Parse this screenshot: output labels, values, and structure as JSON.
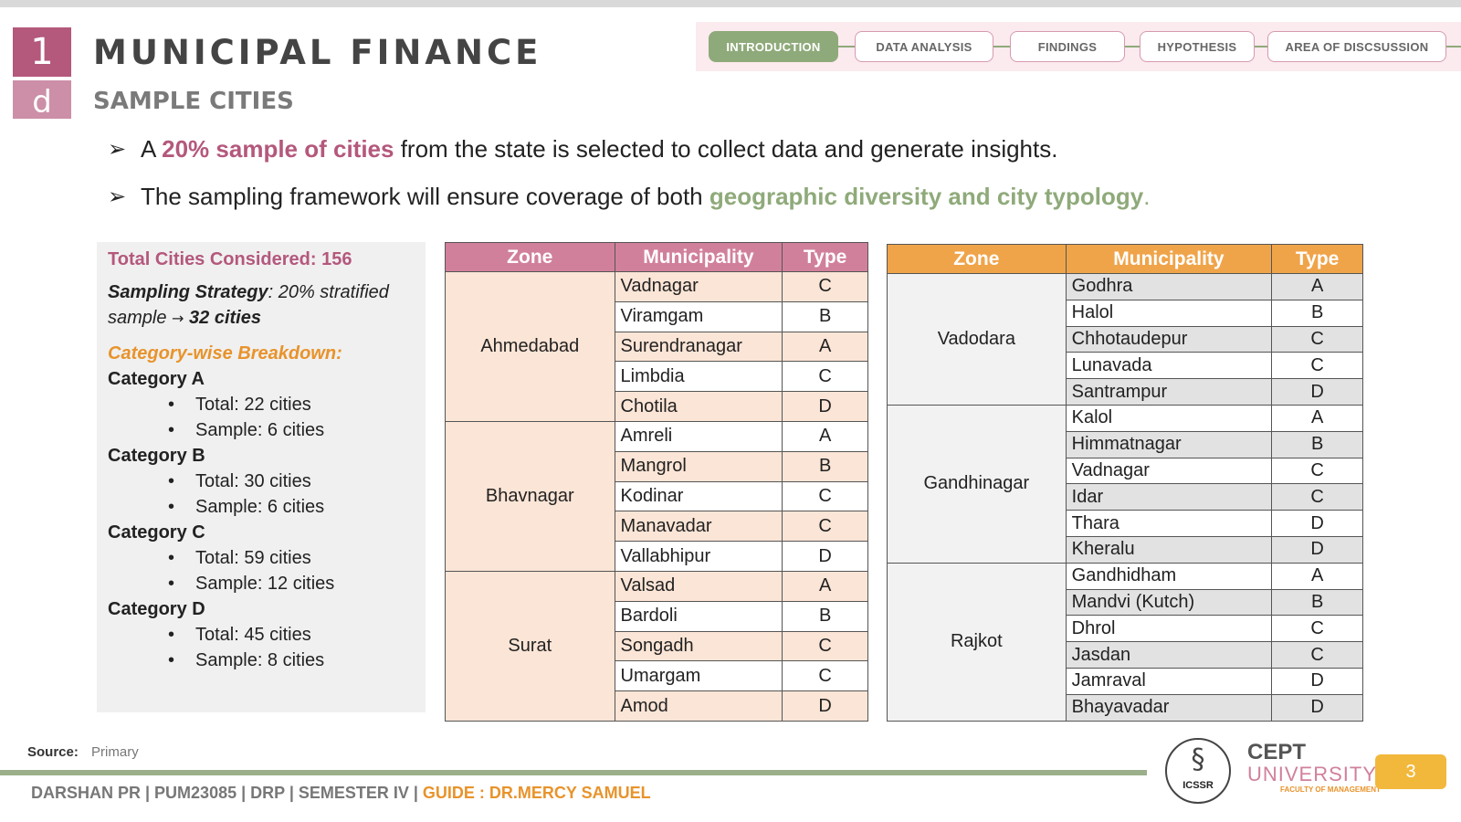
{
  "header": {
    "badge_top": "1",
    "badge_bottom": "d",
    "title": "MUNICIPAL FINANCE",
    "subtitle": "SAMPLE CITIES"
  },
  "nav": {
    "items": [
      "INTRODUCTION",
      "DATA ANALYSIS",
      "FINDINGS",
      "HYPOTHESIS",
      "AREA OF DISCSUSSION"
    ],
    "active": "INTRODUCTION"
  },
  "bullets": [
    {
      "pre": "A ",
      "highlight": "20% sample of cities",
      "post": " from the state is selected to collect data and generate insights."
    },
    {
      "pre": "The sampling framework will ensure coverage of both ",
      "highlight": "geographic diversity and city typology",
      "post": "."
    }
  ],
  "info": {
    "total": "Total Cities Considered: 156",
    "strategy_label": "Sampling Strategy",
    "strategy_text": ": 20% stratified sample",
    "strategy_arrow": "→",
    "strategy_result": "32 cities",
    "breakdown_title": "Category-wise Breakdown:",
    "categories": [
      {
        "name": "Category A",
        "total": "Total: 22 cities",
        "sample": "Sample: 6 cities"
      },
      {
        "name": "Category B",
        "total": "Total: 30 cities",
        "sample": "Sample: 6 cities"
      },
      {
        "name": "Category C",
        "total": "Total: 59 cities",
        "sample": "Sample: 12 cities"
      },
      {
        "name": "Category D",
        "total": "Total: 45 cities",
        "sample": "Sample: 8 cities"
      }
    ]
  },
  "table1": {
    "headers": [
      "Zone",
      "Municipality",
      "Type"
    ],
    "zones": [
      {
        "zone": "Ahmedabad",
        "rows": [
          [
            "Vadnagar",
            "C"
          ],
          [
            "Viramgam",
            "B"
          ],
          [
            "Surendranagar",
            "A"
          ],
          [
            "Limbdia",
            "C"
          ],
          [
            "Chotila",
            "D"
          ]
        ]
      },
      {
        "zone": "Bhavnagar",
        "rows": [
          [
            "Amreli",
            "A"
          ],
          [
            "Mangrol",
            "B"
          ],
          [
            "Kodinar",
            "C"
          ],
          [
            "Manavadar",
            "C"
          ],
          [
            "Vallabhipur",
            "D"
          ]
        ]
      },
      {
        "zone": "Surat",
        "rows": [
          [
            "Valsad",
            "A"
          ],
          [
            "Bardoli",
            "B"
          ],
          [
            "Songadh",
            "C"
          ],
          [
            "Umargam",
            "C"
          ],
          [
            "Amod",
            "D"
          ]
        ]
      }
    ]
  },
  "table2": {
    "headers": [
      "Zone",
      "Municipality",
      "Type"
    ],
    "zones": [
      {
        "zone": "Vadodara",
        "rows": [
          [
            "Godhra",
            "A"
          ],
          [
            "Halol",
            "B"
          ],
          [
            "Chhotaudepur",
            "C"
          ],
          [
            "Lunavada",
            "C"
          ],
          [
            "Santrampur",
            "D"
          ]
        ]
      },
      {
        "zone": "Gandhinagar",
        "rows": [
          [
            "Kalol",
            "A"
          ],
          [
            "Himmatnagar",
            "B"
          ],
          [
            "Vadnagar",
            "C"
          ],
          [
            "Idar",
            "C"
          ],
          [
            "Thara",
            "D"
          ],
          [
            "Kheralu",
            "D"
          ]
        ]
      },
      {
        "zone": "Rajkot",
        "rows": [
          [
            "Gandhidham",
            "A"
          ],
          [
            "Mandvi (Kutch)",
            "B"
          ],
          [
            "Dhrol",
            "C"
          ],
          [
            "Jasdan",
            "C"
          ],
          [
            "Jamraval",
            "D"
          ],
          [
            "Bhayavadar",
            "D"
          ]
        ]
      }
    ]
  },
  "source": {
    "label": "Source:",
    "value": "Primary"
  },
  "footer": {
    "main": "DARSHAN PR | PUM23085 | DRP | SEMESTER IV | ",
    "guide": "GUIDE : DR.MERCY SAMUEL"
  },
  "logos": {
    "icssr": "ICSSR",
    "cept_line1": "CEPT",
    "cept_line2": "UNIVERSITY",
    "cept_line3": "FACULTY OF MANAGEMENT"
  },
  "page_number": "3",
  "colors": {
    "accent_pink": "#b4587c",
    "accent_green": "#8faa7a",
    "accent_orange": "#e8932b"
  }
}
